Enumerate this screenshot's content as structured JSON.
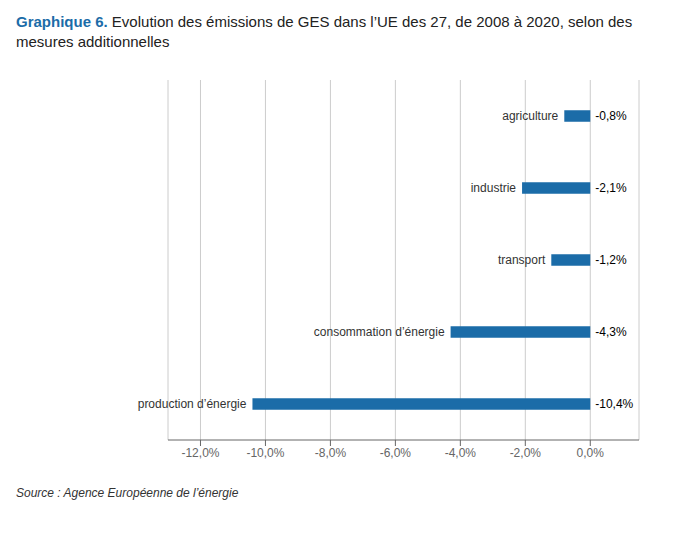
{
  "chart_data": {
    "type": "bar",
    "orientation": "horizontal",
    "title": "Graphique 6.",
    "subtitle": "Evolution des émissions de GES dans l’UE des 27, de 2008 à 2020, selon des mesures additionnelles",
    "categories": [
      "production d’énergie",
      "consommation d’énergie",
      "transport",
      "industrie",
      "agriculture"
    ],
    "values": [
      -10.4,
      -4.3,
      -1.2,
      -2.1,
      -0.8
    ],
    "value_labels": [
      "-10,4%",
      "-4,3%",
      "-1,2%",
      "-2,1%",
      "-0,8%"
    ],
    "data_labels": true,
    "color": "#1b6ca8",
    "xlim": [
      -13.0,
      1.5
    ],
    "xticks": [
      {
        "value": -12.0,
        "label": "-12,0%"
      },
      {
        "value": -10.0,
        "label": "-10,0%"
      },
      {
        "value": -8.0,
        "label": "-8,0%"
      },
      {
        "value": -6.0,
        "label": "-6,0%"
      },
      {
        "value": -4.0,
        "label": "-4,0%"
      },
      {
        "value": -2.0,
        "label": "-2,0%"
      },
      {
        "value": 0.0,
        "label": "0,0%"
      }
    ],
    "grid": true,
    "tick_labels": "x",
    "annotations": [
      "Source : Agence Européenne de l’énergie"
    ]
  }
}
